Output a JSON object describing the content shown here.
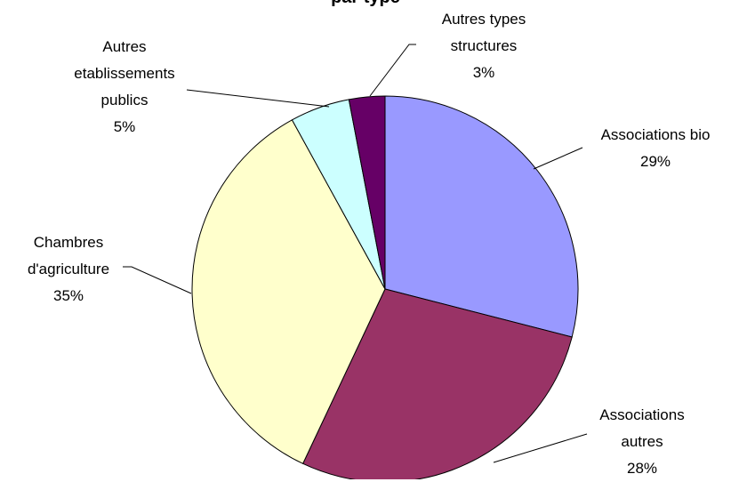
{
  "chart_data": {
    "type": "pie",
    "title": "par type",
    "categories": [
      "Associations bio",
      "Associations autres",
      "Chambres d'agriculture",
      "Autres etablissements publics",
      "Autres types structures"
    ],
    "values": [
      29,
      28,
      35,
      5,
      3
    ],
    "value_labels": [
      "29%",
      "28%",
      "35%",
      "5%",
      "3%"
    ],
    "colors": [
      "#9999ff",
      "#993366",
      "#ffffcc",
      "#ccffff",
      "#660066"
    ]
  }
}
